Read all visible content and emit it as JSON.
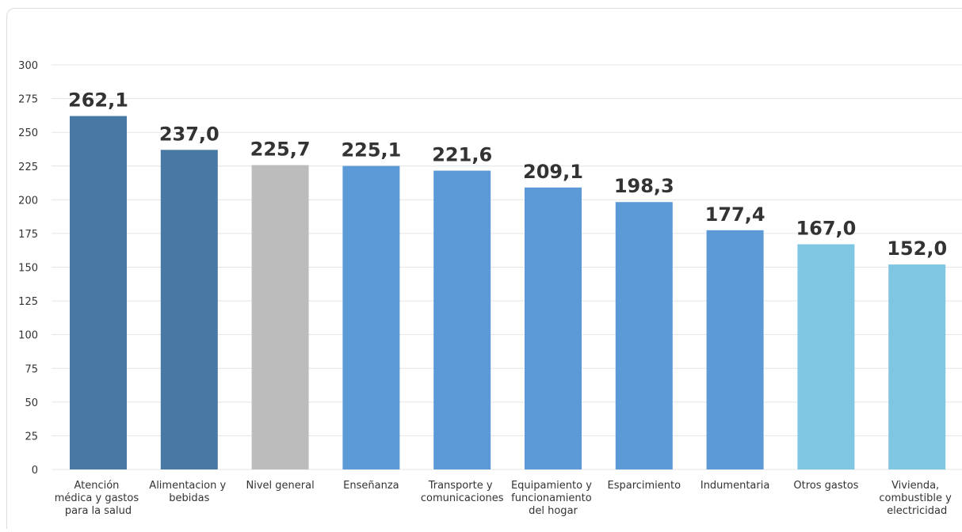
{
  "chart_data": {
    "type": "bar",
    "categories": [
      "Atención médica y gastos para la salud",
      "Alimentacion y bebidas",
      "Nivel general",
      "Enseñanza",
      "Transporte y comunicaciones",
      "Equipamiento y funcionamiento del hogar",
      "Esparcimiento",
      "Indumentaria",
      "Otros gastos",
      "Vivienda, combustible y electricidad"
    ],
    "values": [
      262.1,
      237.0,
      225.7,
      225.1,
      221.6,
      209.1,
      198.3,
      177.4,
      167.0,
      152.0
    ],
    "value_labels": [
      "262,1",
      "237,0",
      "225,7",
      "225,1",
      "221,6",
      "209,1",
      "198,3",
      "177,4",
      "167,0",
      "152,0"
    ],
    "colors": [
      "#4878a4",
      "#4878a4",
      "#bcbcbc",
      "#5b9ad6",
      "#5b9ad6",
      "#5b9ad6",
      "#5b9ad6",
      "#5b9ad6",
      "#7ec6e2",
      "#7ec6e2"
    ],
    "ylim": [
      0,
      300
    ],
    "yticks": [
      0,
      25,
      50,
      75,
      100,
      125,
      150,
      175,
      200,
      225,
      250,
      275,
      300
    ],
    "grid": true
  }
}
